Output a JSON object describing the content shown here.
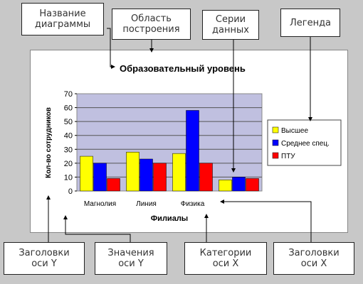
{
  "callouts": {
    "chart_title": [
      "Название",
      "диаграммы"
    ],
    "plot_area": [
      "Область",
      "построения"
    ],
    "data_series": [
      "Серии",
      "данных"
    ],
    "legend": [
      "Легенда"
    ],
    "y_axis_title": [
      "Заголовки",
      "оси Y"
    ],
    "y_axis_values": [
      "Значения",
      "оси Y"
    ],
    "x_axis_categories": [
      "Категории",
      "оси X"
    ],
    "x_axis_title": [
      "Заголовки",
      "оси X"
    ]
  },
  "chart_data": {
    "type": "bar",
    "title": "Образовательный уровень",
    "xlabel": "Филиалы",
    "ylabel": "Кол-во сотрудников",
    "categories": [
      "Магнолия",
      "Линия",
      "Физика",
      ""
    ],
    "series": [
      {
        "name": "Высшее",
        "values": [
          25,
          28,
          27,
          8
        ],
        "color": "#ffff00"
      },
      {
        "name": "Среднее спец.",
        "values": [
          20,
          23,
          58,
          10
        ],
        "color": "#0000ff"
      },
      {
        "name": "ПТУ",
        "values": [
          9,
          20,
          20,
          9
        ],
        "color": "#ff0000"
      }
    ],
    "ylim": [
      0,
      70
    ],
    "yticks": [
      0,
      10,
      20,
      30,
      40,
      50,
      60,
      70
    ],
    "grid": true,
    "legend_position": "right",
    "plot_background": "#c0c0e0"
  }
}
